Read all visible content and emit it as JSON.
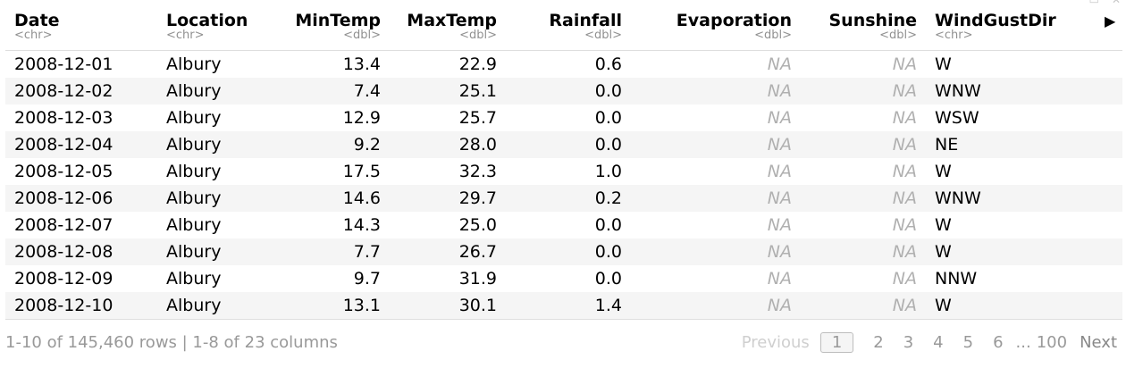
{
  "table": {
    "columns": [
      {
        "name": "Date",
        "type": "<chr>",
        "align": "l"
      },
      {
        "name": "Location",
        "type": "<chr>",
        "align": "l"
      },
      {
        "name": "MinTemp",
        "type": "<dbl>",
        "align": "r"
      },
      {
        "name": "MaxTemp",
        "type": "<dbl>",
        "align": "r"
      },
      {
        "name": "Rainfall",
        "type": "<dbl>",
        "align": "r"
      },
      {
        "name": "Evaporation",
        "type": "<dbl>",
        "align": "r"
      },
      {
        "name": "Sunshine",
        "type": "<dbl>",
        "align": "r"
      },
      {
        "name": "WindGustDir",
        "type": "<chr>",
        "align": "l"
      }
    ],
    "rows": [
      [
        "2008-12-01",
        "Albury",
        "13.4",
        "22.9",
        "0.6",
        "NA",
        "NA",
        "W"
      ],
      [
        "2008-12-02",
        "Albury",
        "7.4",
        "25.1",
        "0.0",
        "NA",
        "NA",
        "WNW"
      ],
      [
        "2008-12-03",
        "Albury",
        "12.9",
        "25.7",
        "0.0",
        "NA",
        "NA",
        "WSW"
      ],
      [
        "2008-12-04",
        "Albury",
        "9.2",
        "28.0",
        "0.0",
        "NA",
        "NA",
        "NE"
      ],
      [
        "2008-12-05",
        "Albury",
        "17.5",
        "32.3",
        "1.0",
        "NA",
        "NA",
        "W"
      ],
      [
        "2008-12-06",
        "Albury",
        "14.6",
        "29.7",
        "0.2",
        "NA",
        "NA",
        "WNW"
      ],
      [
        "2008-12-07",
        "Albury",
        "14.3",
        "25.0",
        "0.0",
        "NA",
        "NA",
        "W"
      ],
      [
        "2008-12-08",
        "Albury",
        "7.7",
        "26.7",
        "0.0",
        "NA",
        "NA",
        "W"
      ],
      [
        "2008-12-09",
        "Albury",
        "9.7",
        "31.9",
        "0.0",
        "NA",
        "NA",
        "NNW"
      ],
      [
        "2008-12-10",
        "Albury",
        "13.1",
        "30.1",
        "1.4",
        "NA",
        "NA",
        "W"
      ]
    ],
    "next_columns_icon": "triangle-right-icon"
  },
  "footer": {
    "summary": "1-10 of 145,460 rows | 1-8 of 23 columns",
    "pager": {
      "previous": "Previous",
      "pages": [
        "1",
        "2",
        "3",
        "4",
        "5",
        "6"
      ],
      "current": "1",
      "ellipsis": "...",
      "last": "100",
      "next": "Next"
    }
  },
  "window_icons": [
    "expand-icon",
    "close-icon"
  ]
}
